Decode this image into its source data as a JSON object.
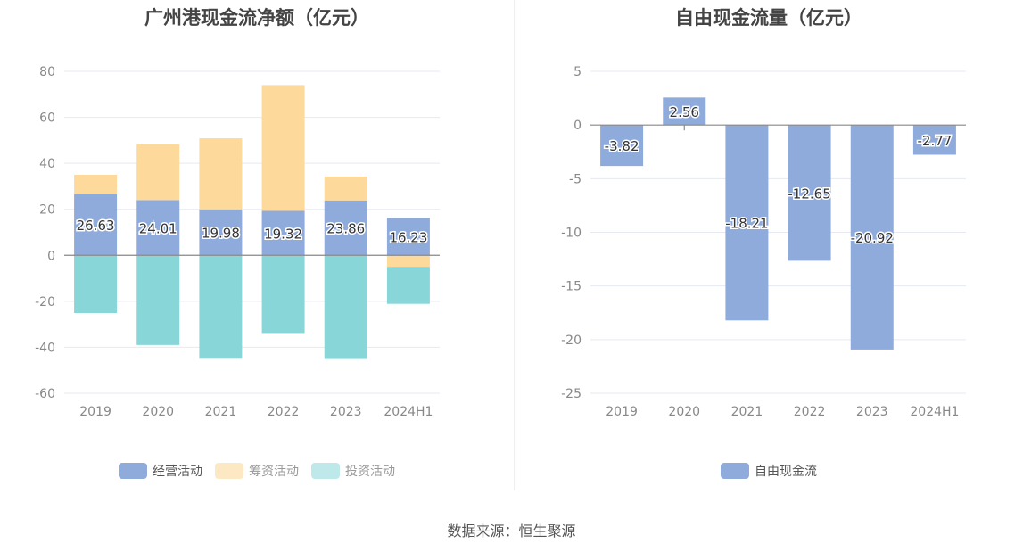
{
  "source": "数据来源：恒生聚源",
  "chart_data": [
    {
      "type": "bar",
      "stacked": true,
      "title": "广州港现金流净额（亿元）",
      "categories": [
        "2019",
        "2020",
        "2021",
        "2022",
        "2023",
        "2024H1"
      ],
      "ylim": [
        -60,
        80
      ],
      "yticks": [
        80,
        60,
        40,
        20,
        0,
        -20,
        -40,
        -60
      ],
      "series": [
        {
          "name": "经营活动",
          "color": "#8eabdb",
          "values": [
            26.63,
            24.01,
            19.98,
            19.32,
            23.86,
            16.23
          ],
          "labels": [
            "26.63",
            "24.01",
            "19.98",
            "19.32",
            "23.86",
            "16.23"
          ]
        },
        {
          "name": "筹资活动",
          "color": "#fdd99b",
          "values": [
            8.4,
            24.2,
            30.9,
            54.7,
            10.4,
            -5.0
          ]
        },
        {
          "name": "投资活动",
          "color": "#89d6d9",
          "values": [
            -25.1,
            -39.0,
            -45.0,
            -33.8,
            -45.1,
            -16.1
          ]
        }
      ],
      "legend_position": "bottom"
    },
    {
      "type": "bar",
      "title": "自由现金流量（亿元）",
      "categories": [
        "2019",
        "2020",
        "2021",
        "2022",
        "2023",
        "2024H1"
      ],
      "ylim": [
        -25,
        5
      ],
      "yticks": [
        5,
        0,
        -5,
        -10,
        -15,
        -20,
        -25
      ],
      "series": [
        {
          "name": "自由现金流",
          "color": "#8eabdb",
          "values": [
            -3.82,
            2.56,
            -18.21,
            -12.65,
            -20.92,
            -2.77
          ],
          "labels": [
            "-3.82",
            "2.56",
            "-18.21",
            "-12.65",
            "-20.92",
            "-2.77"
          ]
        }
      ],
      "legend_position": "bottom"
    }
  ]
}
